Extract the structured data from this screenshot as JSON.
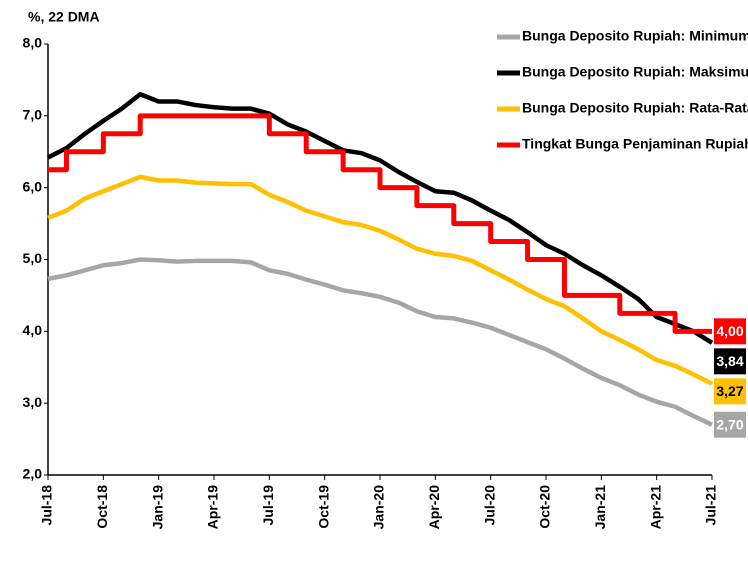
{
  "chart_data": {
    "type": "line",
    "title": "%, 22 DMA",
    "categories": [
      "Jul-18",
      null,
      null,
      "Oct-18",
      null,
      null,
      "Jan-19",
      null,
      null,
      "Apr-19",
      null,
      null,
      "Jul-19",
      null,
      null,
      "Oct-19",
      null,
      null,
      "Jan-20",
      null,
      null,
      "Apr-20",
      null,
      null,
      "Jul-20",
      null,
      null,
      "Oct-20",
      null,
      null,
      "Jan-21",
      null,
      null,
      "Apr-21",
      null,
      null,
      "Jul-21"
    ],
    "series": [
      {
        "name": "Bunga Deposito Rupiah: Minimum",
        "color": "#a6a6a6",
        "values": [
          4.73,
          4.78,
          4.85,
          4.92,
          4.95,
          5.0,
          4.99,
          4.97,
          4.98,
          4.98,
          4.98,
          4.96,
          4.85,
          4.8,
          4.72,
          4.65,
          4.57,
          4.53,
          4.48,
          4.4,
          4.28,
          4.2,
          4.18,
          4.12,
          4.05,
          3.95,
          3.85,
          3.75,
          3.62,
          3.48,
          3.35,
          3.25,
          3.12,
          3.02,
          2.95,
          2.82,
          2.7
        ],
        "value_labels": [
          null,
          null,
          null,
          null,
          null,
          null,
          null,
          null,
          null,
          null,
          null,
          null,
          null,
          null,
          null,
          null,
          null,
          null,
          null,
          null,
          null,
          null,
          null,
          null,
          null,
          null,
          null,
          null,
          null,
          null,
          null,
          null,
          null,
          null,
          null,
          null,
          "2,70"
        ]
      },
      {
        "name": "Bunga Deposito Rupiah: Maksimum",
        "color": "#000000",
        "values": [
          6.42,
          6.55,
          6.75,
          6.93,
          7.1,
          7.3,
          7.2,
          7.2,
          7.15,
          7.12,
          7.1,
          7.1,
          7.03,
          6.88,
          6.78,
          6.65,
          6.52,
          6.48,
          6.38,
          6.22,
          6.08,
          5.95,
          5.93,
          5.82,
          5.68,
          5.55,
          5.38,
          5.2,
          5.08,
          4.92,
          4.78,
          4.62,
          4.45,
          4.2,
          4.1,
          4.0,
          3.84
        ],
        "value_labels": [
          null,
          null,
          null,
          null,
          null,
          null,
          null,
          null,
          null,
          null,
          null,
          null,
          null,
          null,
          null,
          null,
          null,
          null,
          null,
          null,
          null,
          null,
          null,
          null,
          null,
          null,
          null,
          null,
          null,
          null,
          null,
          null,
          null,
          null,
          null,
          null,
          "3,84"
        ]
      },
      {
        "name": "Bunga Deposito Rupiah: Rata-Rata",
        "color": "#ffc000",
        "values": [
          5.58,
          5.68,
          5.85,
          5.95,
          6.05,
          6.15,
          6.1,
          6.1,
          6.07,
          6.06,
          6.05,
          6.05,
          5.9,
          5.8,
          5.68,
          5.6,
          5.52,
          5.48,
          5.4,
          5.28,
          5.15,
          5.08,
          5.05,
          4.98,
          4.85,
          4.72,
          4.58,
          4.45,
          4.35,
          4.18,
          4.0,
          3.88,
          3.75,
          3.6,
          3.52,
          3.4,
          3.27
        ],
        "value_labels": [
          null,
          null,
          null,
          null,
          null,
          null,
          null,
          null,
          null,
          null,
          null,
          null,
          null,
          null,
          null,
          null,
          null,
          null,
          null,
          null,
          null,
          null,
          null,
          null,
          null,
          null,
          null,
          null,
          null,
          null,
          null,
          null,
          null,
          null,
          null,
          null,
          "3,27"
        ]
      },
      {
        "name": "Tingkat Bunga Penjaminan Rupiah",
        "color": "#ff0000",
        "step": true,
        "values": [
          6.25,
          6.5,
          6.5,
          6.75,
          6.75,
          7.0,
          7.0,
          7.0,
          7.0,
          7.0,
          7.0,
          7.0,
          6.75,
          6.75,
          6.5,
          6.5,
          6.25,
          6.25,
          6.0,
          6.0,
          5.75,
          5.75,
          5.5,
          5.5,
          5.25,
          5.25,
          5.0,
          5.0,
          4.5,
          4.5,
          4.5,
          4.25,
          4.25,
          4.25,
          4.0,
          4.0,
          4.0
        ],
        "value_labels": [
          null,
          null,
          null,
          null,
          null,
          null,
          null,
          null,
          null,
          null,
          null,
          null,
          null,
          null,
          null,
          null,
          null,
          null,
          null,
          null,
          null,
          null,
          null,
          null,
          null,
          null,
          null,
          null,
          null,
          null,
          null,
          null,
          null,
          null,
          null,
          null,
          "4,00"
        ]
      }
    ],
    "ylim": [
      2.0,
      8.0
    ],
    "yticks": [
      {
        "value": 2.0,
        "label": "2,0"
      },
      {
        "value": 3.0,
        "label": "3,0"
      },
      {
        "value": 4.0,
        "label": "4,0"
      },
      {
        "value": 5.0,
        "label": "5,0"
      },
      {
        "value": 6.0,
        "label": "6,0"
      },
      {
        "value": 7.0,
        "label": "7,0"
      },
      {
        "value": 8.0,
        "label": "8,0"
      }
    ],
    "grid": false,
    "legend": "top-right"
  }
}
